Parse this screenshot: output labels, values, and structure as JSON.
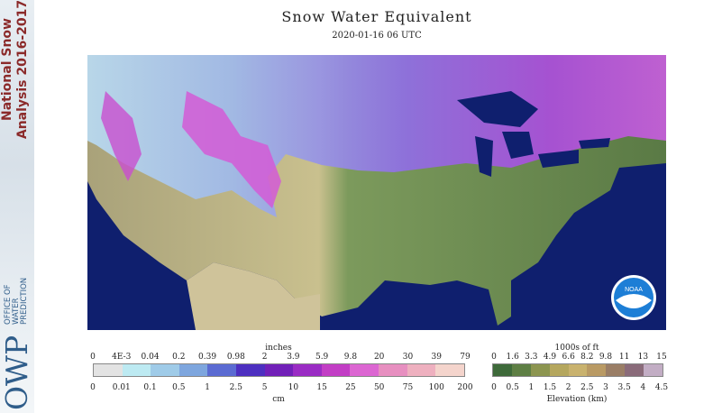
{
  "sidebar": {
    "title_line1": "National Snow",
    "title_line2": "Analysis 2016-2017",
    "org_line1": "OFFICE OF",
    "org_line2": "WATER",
    "org_line3": "PREDICTION",
    "logo_text": "OWP"
  },
  "header": {
    "title": "Snow Water Equivalent",
    "timestamp": "2020-01-16 06 UTC"
  },
  "map": {
    "badge": "NOAA"
  },
  "swe_legend": {
    "top_unit": "inches",
    "top_ticks": [
      "0",
      "4E-3",
      "0.04",
      "0.2",
      "0.39",
      "0.98",
      "2",
      "3.9",
      "5.9",
      "9.8",
      "20",
      "30",
      "39",
      "79"
    ],
    "bottom_unit": "cm",
    "bottom_ticks": [
      "0",
      "0.01",
      "0.1",
      "0.5",
      "1",
      "2.5",
      "5",
      "10",
      "15",
      "25",
      "50",
      "75",
      "100",
      "200"
    ],
    "colors": [
      "#e3e3e3",
      "#bdeaf2",
      "#9fcbe8",
      "#7ea6de",
      "#5b6bd2",
      "#4d2fc0",
      "#7120b8",
      "#9a2cc4",
      "#c23ec5",
      "#dc66d2",
      "#e78fc0",
      "#eeb0bf",
      "#f4d4cc"
    ]
  },
  "elev_legend": {
    "top_unit": "1000s of ft",
    "top_ticks": [
      "0",
      "1.6",
      "3.3",
      "4.9",
      "6.6",
      "8.2",
      "9.8",
      "11",
      "13",
      "15"
    ],
    "bottom_label": "Elevation (km)",
    "bottom_ticks": [
      "0",
      "0.5",
      "1",
      "1.5",
      "2",
      "2.5",
      "3",
      "3.5",
      "4",
      "4.5"
    ],
    "colors": [
      "#3e6a3a",
      "#5e7f44",
      "#8c9550",
      "#b5a75e",
      "#c9b26e",
      "#b99a64",
      "#9a7e66",
      "#8a6b7a",
      "#c2adc4"
    ]
  }
}
